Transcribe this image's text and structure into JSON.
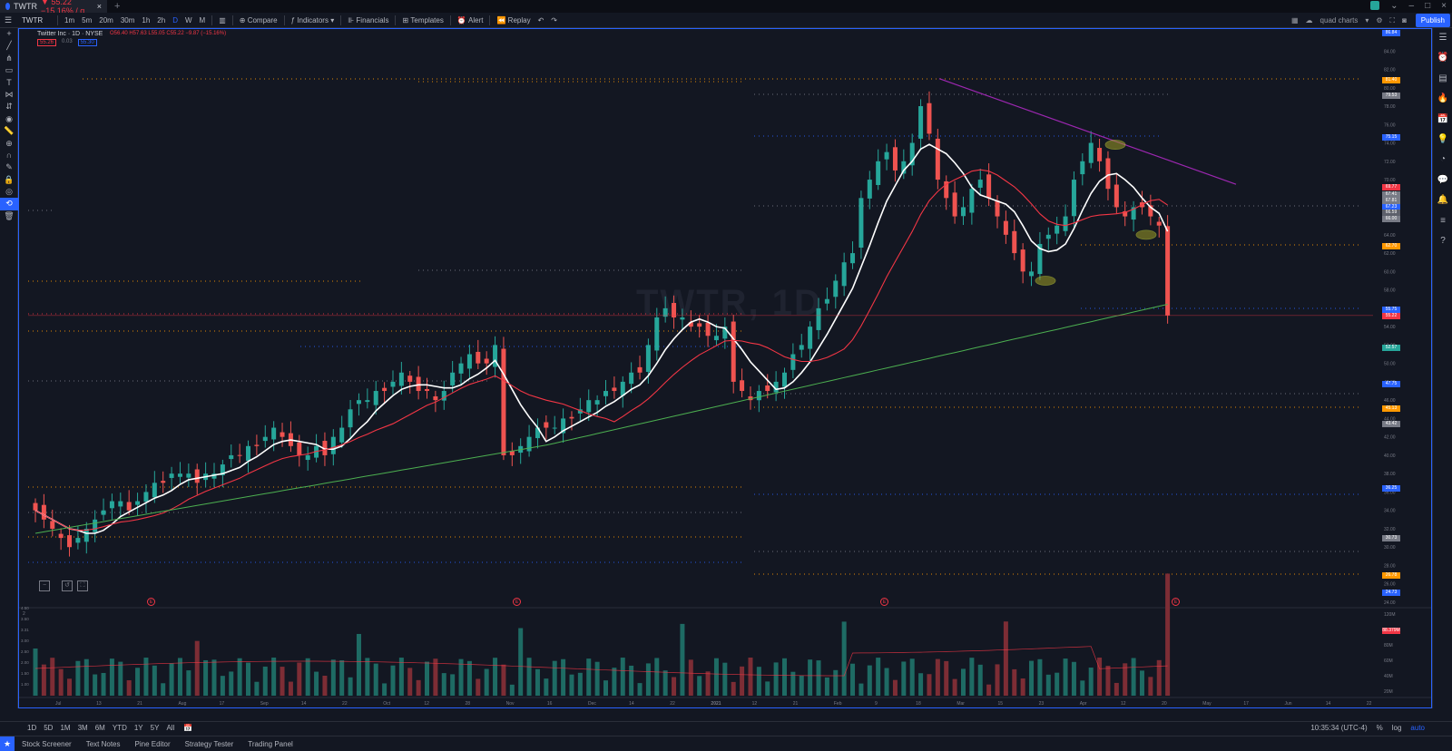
{
  "browser": {
    "tab_title": "TWTR",
    "tab_price": "▼ 55.22 −15.16% / q...",
    "plus": "+"
  },
  "toolbar": {
    "symbol": "TWTR",
    "intervals": [
      "1m",
      "5m",
      "20m",
      "30m",
      "1h",
      "2h",
      "D",
      "W",
      "M"
    ],
    "compare": "Compare",
    "indicators": "Indicators",
    "financials": "Financials",
    "templates": "Templates",
    "alert": "Alert",
    "replay": "Replay",
    "layout_name": "quad charts",
    "publish": "Publish"
  },
  "legend": {
    "title": "Twitter Inc · 1D · NYSE",
    "ohlc": "O56.40 H57.63 L55.05 C55.22 −9.87 (−15.16%)",
    "price_box_1": "55.26",
    "spread": "0.03",
    "price_box_2": "55.30"
  },
  "watermark": "TWTR, 1D",
  "price_axis": [
    "86.00",
    "84.00",
    "82.00",
    "80.00",
    "78.00",
    "76.00",
    "74.00",
    "72.00",
    "70.00",
    "68.00",
    "66.00",
    "64.00",
    "62.00",
    "60.00",
    "58.00",
    "56.00",
    "54.00",
    "52.00",
    "50.00",
    "48.00",
    "46.00",
    "44.00",
    "42.00",
    "40.00",
    "38.00",
    "36.00",
    "34.00",
    "32.00",
    "30.00",
    "28.00",
    "26.00",
    "24.00"
  ],
  "price_tags": [
    {
      "v": "86.84",
      "c": "#2962ff",
      "y": 35
    },
    {
      "v": "81.40",
      "c": "#ff9800",
      "y": 87
    },
    {
      "v": "79.53",
      "c": "#787b86",
      "y": 104
    },
    {
      "v": "75.15",
      "c": "#2962ff",
      "y": 150
    },
    {
      "v": "69.77",
      "c": "#f23645",
      "y": 205
    },
    {
      "v": "67.41",
      "c": "#787b86",
      "y": 213
    },
    {
      "v": "67.81",
      "c": "#787b86",
      "y": 220
    },
    {
      "v": "67.23",
      "c": "#2962ff",
      "y": 227
    },
    {
      "v": "66.59",
      "c": "#5d606b",
      "y": 233
    },
    {
      "v": "66.00",
      "c": "#787b86",
      "y": 240
    },
    {
      "v": "62.70",
      "c": "#ff9800",
      "y": 270
    },
    {
      "v": "55.75",
      "c": "#2962ff",
      "y": 340
    },
    {
      "v": "55.22",
      "c": "#f23645",
      "y": 347
    },
    {
      "v": "52.57",
      "c": "#26a69a",
      "y": 382
    },
    {
      "v": "47.75",
      "c": "#2962ff",
      "y": 422
    },
    {
      "v": "45.13",
      "c": "#ff9800",
      "y": 449
    },
    {
      "v": "43.42",
      "c": "#787b86",
      "y": 466
    },
    {
      "v": "36.25",
      "c": "#2962ff",
      "y": 537
    },
    {
      "v": "30.73",
      "c": "#787b86",
      "y": 592
    },
    {
      "v": "26.78",
      "c": "#ff9800",
      "y": 633
    },
    {
      "v": "24.73",
      "c": "#2962ff",
      "y": 652
    }
  ],
  "volume_axis": [
    "120M",
    "100M",
    "80M",
    "60M",
    "40M",
    "20M"
  ],
  "volume_tag": "88.379M",
  "volume_legend": "2",
  "volume_left_labels": [
    "4.50",
    "3.50",
    "3.31",
    "3.00",
    "2.50",
    "2.00",
    "1.50",
    "1.00"
  ],
  "time_axis": [
    "Jul",
    "13",
    "21",
    "Aug",
    "17",
    "Sep",
    "14",
    "22",
    "Oct",
    "12",
    "28",
    "Nov",
    "16",
    "Dec",
    "14",
    "22",
    "2021",
    "12",
    "21",
    "Feb",
    "9",
    "18",
    "Mar",
    "15",
    "23",
    "Apr",
    "12",
    "20",
    "May",
    "17",
    "Jun",
    "14",
    "22"
  ],
  "bottom_bar": {
    "ranges": [
      "1D",
      "5D",
      "1M",
      "3M",
      "6M",
      "YTD",
      "1Y",
      "5Y",
      "All"
    ],
    "clock": "10:35:34 (UTC-4)",
    "pct": "%",
    "log": "log",
    "auto": "auto"
  },
  "panels": [
    "Stock Screener",
    "Text Notes",
    "Pine Editor",
    "Strategy Tester",
    "Trading Panel"
  ],
  "earnings_markers": [
    "E",
    "E",
    "E",
    "E"
  ],
  "colors": {
    "up": "#26a69a",
    "down": "#ef5350",
    "accent": "#2962ff",
    "ma20": "#ffffff",
    "ma50": "#f23645",
    "ma200": "#4caf50",
    "trendline": "#9c27b0",
    "highlight": "#9e9d24"
  },
  "chart_data": {
    "type": "candlestick",
    "title": "Twitter Inc · 1D · NYSE",
    "ylim": [
      24,
      86
    ],
    "series_overlays": [
      "MA 20 (white)",
      "MA 50 (red)",
      "MA 200 (green)"
    ],
    "closes": [
      34,
      33,
      32,
      31,
      30,
      31,
      32,
      33,
      34,
      35,
      35,
      34,
      35,
      36,
      37,
      37,
      38,
      38,
      38,
      37,
      38,
      38,
      39,
      40,
      40,
      41,
      41,
      42,
      43,
      42,
      41,
      40,
      40,
      41,
      40,
      42,
      43,
      45,
      46,
      46,
      47,
      47,
      48,
      49,
      48,
      47,
      47,
      46,
      47,
      49,
      50,
      51,
      50,
      50,
      52,
      40,
      40,
      41,
      42,
      43,
      43,
      43,
      44,
      44,
      45,
      46,
      46,
      47,
      47,
      48,
      49,
      49,
      52,
      55,
      56,
      55,
      55,
      54,
      54,
      53,
      53,
      54,
      48,
      47,
      46,
      47,
      47,
      48,
      49,
      51,
      52,
      54,
      56,
      57,
      59,
      61,
      62,
      68,
      70,
      72,
      73,
      71,
      72,
      74,
      78,
      75,
      70,
      68,
      66,
      67,
      69,
      70,
      68,
      66,
      64,
      62,
      60,
      60,
      63,
      64,
      65,
      66,
      70,
      72,
      74,
      72,
      69,
      67,
      66,
      67,
      67,
      66,
      65,
      55.22
    ],
    "last_close": 55.22,
    "change": "-9.87 (-15.16%)"
  }
}
